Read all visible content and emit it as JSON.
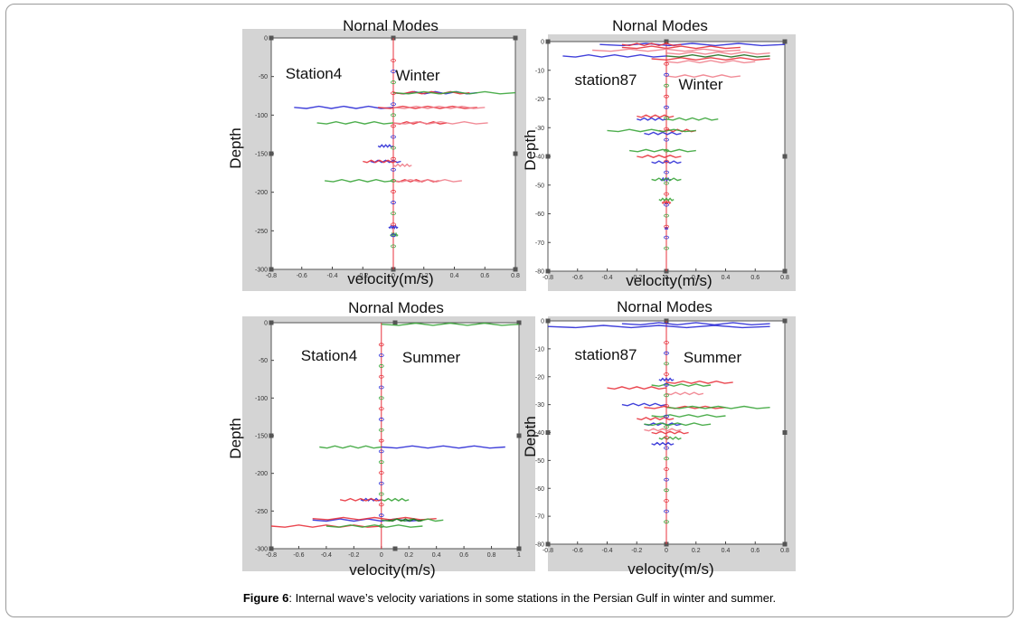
{
  "caption": {
    "label": "Figure 6",
    "text": ": Internal wave’s velocity variations in some stations in the Persian Gulf in winter and summer."
  },
  "colors": {
    "blue": "#2b2bd6",
    "red": "#e8323c",
    "pink": "#ef7f8c",
    "green": "#3aa53a",
    "darkgreen": "#1f6e1f",
    "axis_bg": "#d4d4d4"
  },
  "chart_data": [
    {
      "type": "line",
      "title": "Nornal Modes",
      "xlabel": "velocity(m/s)",
      "ylabel": "Depth",
      "annotations": [
        "Station4",
        "Winter"
      ],
      "xlim": [
        -0.8,
        0.8
      ],
      "ylim": [
        -300,
        0
      ],
      "xticks": [
        "-0.8",
        "-0.6",
        "-0.4",
        "-0.2",
        "0",
        "0.2",
        "0.4",
        "0.6",
        "0.8"
      ],
      "yticks": [
        "0",
        "-50",
        "-100",
        "-150",
        "-200",
        "-250",
        "-300"
      ],
      "series": [
        {
          "color": "blue",
          "segments": [
            [
              -71,
              0.0,
              0.55
            ],
            [
              -90,
              -0.65,
              0.0
            ],
            [
              -140,
              -0.1,
              0.0
            ],
            [
              -160,
              -0.15,
              0.05
            ],
            [
              -245,
              -0.03,
              0.03
            ]
          ]
        },
        {
          "color": "red",
          "segments": [
            [
              -71,
              0.0,
              0.5
            ],
            [
              -90,
              -0.1,
              0.55
            ],
            [
              -110,
              0.0,
              0.35
            ],
            [
              -160,
              -0.2,
              0.02
            ],
            [
              -185,
              0.0,
              0.3
            ]
          ]
        },
        {
          "color": "pink",
          "segments": [
            [
              -90,
              0.0,
              0.6
            ],
            [
              -110,
              0.0,
              0.62
            ],
            [
              -165,
              0.0,
              0.12
            ],
            [
              -185,
              0.0,
              0.45
            ]
          ]
        },
        {
          "color": "green",
          "segments": [
            [
              -71,
              0.0,
              0.8
            ],
            [
              -110,
              -0.5,
              0.0
            ],
            [
              -185,
              -0.45,
              0.0
            ],
            [
              -255,
              -0.02,
              0.03
            ]
          ]
        }
      ]
    },
    {
      "type": "line",
      "title": "Nornal Modes",
      "xlabel": "velocity(m/s)",
      "ylabel": "Depth",
      "annotations": [
        "station87",
        "Winter"
      ],
      "xlim": [
        -0.8,
        0.8
      ],
      "ylim": [
        -80,
        0
      ],
      "xticks": [
        "-0.8",
        "-0.6",
        "-0.4",
        "-0.2",
        "0",
        "0.2",
        "0.4",
        "0.6",
        "0.8"
      ],
      "yticks": [
        "0",
        "-10",
        "-20",
        "-30",
        "-40",
        "-50",
        "-60",
        "-70",
        "-80"
      ],
      "series": [
        {
          "color": "blue",
          "segments": [
            [
              -1,
              -0.45,
              0.8
            ],
            [
              -5,
              -0.7,
              0.0
            ],
            [
              -27,
              -0.2,
              0.0
            ],
            [
              -32,
              -0.15,
              0.1
            ],
            [
              -42,
              -0.1,
              0.1
            ],
            [
              -48,
              -0.04,
              0.03
            ],
            [
              -65,
              -0.01,
              0.01
            ]
          ]
        },
        {
          "color": "red",
          "segments": [
            [
              -1,
              -0.3,
              0.1
            ],
            [
              -2,
              -0.3,
              0.5
            ],
            [
              -6,
              -0.1,
              0.7
            ],
            [
              -26,
              -0.2,
              0.05
            ],
            [
              -31,
              -0.05,
              0.2
            ],
            [
              -40,
              -0.2,
              0.1
            ],
            [
              -56,
              -0.03,
              0.03
            ]
          ]
        },
        {
          "color": "pink",
          "segments": [
            [
              -3,
              -0.5,
              0.5
            ],
            [
              -4,
              0.0,
              0.7
            ],
            [
              -7,
              0.0,
              0.6
            ],
            [
              -12,
              0.0,
              0.5
            ]
          ]
        },
        {
          "color": "green",
          "segments": [
            [
              -27,
              0.0,
              0.35
            ],
            [
              -31,
              -0.4,
              0.2
            ],
            [
              -38,
              -0.25,
              0.2
            ],
            [
              -48,
              -0.1,
              0.1
            ],
            [
              -55,
              -0.05,
              0.05
            ]
          ]
        },
        {
          "color": "darkgreen",
          "segments": [
            [
              -5,
              0.0,
              0.7
            ]
          ]
        }
      ]
    },
    {
      "type": "line",
      "title": "Nornal Modes",
      "xlabel": "velocity(m/s)",
      "ylabel": "Depth",
      "annotations": [
        "Station4",
        "Summer"
      ],
      "xlim": [
        -0.8,
        1
      ],
      "ylim": [
        -300,
        0
      ],
      "xticks": [
        "-0.8",
        "-0.6",
        "-0.4",
        "-0.2",
        "0",
        "0.2",
        "0.4",
        "0.6",
        "0.8",
        "1"
      ],
      "yticks": [
        "0",
        "-50",
        "-100",
        "-150",
        "-200",
        "-250",
        "-300"
      ],
      "series": [
        {
          "color": "blue",
          "segments": [
            [
              -165,
              0.0,
              0.9
            ],
            [
              -235,
              -0.15,
              0.0
            ],
            [
              -262,
              -0.5,
              0.3
            ]
          ]
        },
        {
          "color": "red",
          "segments": [
            [
              -235,
              -0.3,
              0.0
            ],
            [
              -260,
              -0.5,
              0.4
            ],
            [
              -270,
              -0.8,
              0.0
            ]
          ]
        },
        {
          "color": "green",
          "segments": [
            [
              -2,
              0.0,
              1.0
            ],
            [
              -165,
              -0.45,
              0.0
            ],
            [
              -235,
              0.0,
              0.2
            ],
            [
              -262,
              0.0,
              0.45
            ],
            [
              -270,
              -0.4,
              0.3
            ]
          ]
        },
        {
          "color": "darkgreen",
          "segments": [
            [
              -262,
              0.05,
              0.3
            ]
          ]
        }
      ]
    },
    {
      "type": "line",
      "title": "Nornal Modes",
      "xlabel": "velocity(m/s)",
      "ylabel": "Depth",
      "annotations": [
        "station87",
        "Summer"
      ],
      "xlim": [
        -0.8,
        0.8
      ],
      "ylim": [
        -80,
        0
      ],
      "xticks": [
        "-0.8",
        "-0.6",
        "-0.4",
        "-0.2",
        "0",
        "0.2",
        "0.4",
        "0.6",
        "0.8"
      ],
      "yticks": [
        "0",
        "-10",
        "-20",
        "-30",
        "-40",
        "-50",
        "-60",
        "-70",
        "-80"
      ],
      "series": [
        {
          "color": "blue",
          "segments": [
            [
              -1,
              -0.3,
              0.7
            ],
            [
              -2,
              -0.8,
              0.7
            ],
            [
              -21,
              -0.05,
              0.05
            ],
            [
              -30,
              -0.3,
              0.0
            ],
            [
              -37,
              -0.15,
              0.1
            ],
            [
              -44,
              -0.1,
              0.05
            ]
          ]
        },
        {
          "color": "red",
          "segments": [
            [
              -22,
              0.0,
              0.45
            ],
            [
              -24,
              -0.4,
              0.0
            ],
            [
              -31,
              -0.15,
              0.4
            ],
            [
              -35,
              -0.2,
              0.05
            ],
            [
              -40,
              -0.1,
              0.15
            ]
          ]
        },
        {
          "color": "pink",
          "segments": [
            [
              -26,
              0.0,
              0.25
            ],
            [
              -39,
              -0.15,
              0.1
            ]
          ]
        },
        {
          "color": "green",
          "segments": [
            [
              -23,
              -0.1,
              0.3
            ],
            [
              -31,
              0.0,
              0.7
            ],
            [
              -34,
              -0.1,
              0.4
            ],
            [
              -37,
              -0.15,
              0.3
            ],
            [
              -42,
              -0.05,
              0.1
            ]
          ]
        }
      ]
    }
  ]
}
